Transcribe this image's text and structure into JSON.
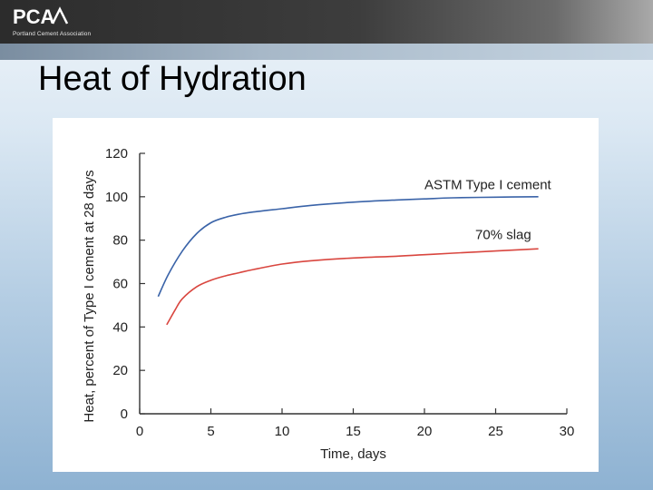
{
  "header": {
    "logo_text": "PCA",
    "logo_subtitle": "Portland Cement Association"
  },
  "slide": {
    "title": "Heat of Hydration"
  },
  "colors": {
    "series_astm": "#3a63a8",
    "series_slag": "#d9463f",
    "axis": "#333333"
  },
  "chart_data": {
    "type": "line",
    "title": "",
    "xlabel": "Time, days",
    "ylabel": "Heat, percent of Type I cement at 28 days",
    "xlim": [
      0,
      30
    ],
    "ylim": [
      0,
      120
    ],
    "x_ticks": [
      0,
      5,
      10,
      15,
      20,
      25,
      30
    ],
    "y_ticks": [
      0,
      20,
      40,
      60,
      80,
      100,
      120
    ],
    "grid": false,
    "series": [
      {
        "name": "ASTM Type I cement",
        "color_key": "series_astm",
        "x": [
          1.3,
          2,
          3,
          4,
          5,
          6,
          7,
          8,
          10,
          12,
          15,
          18,
          20,
          22,
          25,
          28
        ],
        "values": [
          54,
          64,
          75,
          83,
          88,
          90.5,
          92,
          93,
          94.5,
          96,
          97.5,
          98.5,
          99,
          99.5,
          99.8,
          100
        ]
      },
      {
        "name": "70% slag",
        "color_key": "series_slag",
        "x": [
          1.9,
          2.5,
          3,
          4,
          5,
          6,
          7,
          8,
          10,
          12,
          15,
          18,
          20,
          22,
          25,
          28
        ],
        "values": [
          41,
          48,
          53,
          58.5,
          61.5,
          63.5,
          65,
          66.5,
          69,
          70.5,
          71.8,
          72.6,
          73.3,
          74,
          75,
          76
        ]
      }
    ]
  }
}
